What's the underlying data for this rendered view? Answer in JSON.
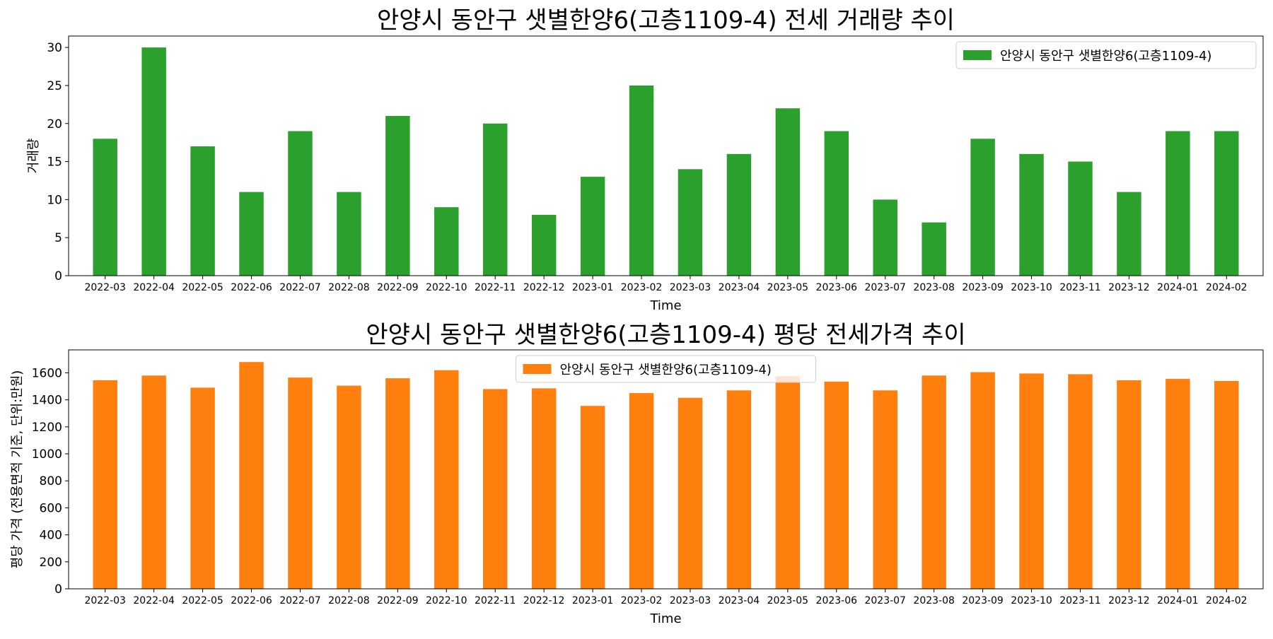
{
  "chart_data": [
    {
      "type": "bar",
      "title": "안양시 동안구 샛별한양6(고층1109-4) 전세 거래량 추이",
      "xlabel": "Time",
      "ylabel": "거래량",
      "ylim": [
        0,
        31.5
      ],
      "yticks": [
        0,
        5,
        10,
        15,
        20,
        25,
        30
      ],
      "color": "#2ca02c",
      "legend_position": "top-right",
      "categories": [
        "2022-03",
        "2022-04",
        "2022-05",
        "2022-06",
        "2022-07",
        "2022-08",
        "2022-09",
        "2022-10",
        "2022-11",
        "2022-12",
        "2023-01",
        "2023-02",
        "2023-03",
        "2023-04",
        "2023-05",
        "2023-06",
        "2023-07",
        "2023-08",
        "2023-09",
        "2023-10",
        "2023-11",
        "2023-12",
        "2024-01",
        "2024-02"
      ],
      "series": [
        {
          "name": "안양시 동안구 샛별한양6(고층1109-4)",
          "values": [
            18,
            30,
            17,
            11,
            19,
            11,
            21,
            9,
            20,
            8,
            13,
            25,
            14,
            16,
            22,
            19,
            10,
            7,
            18,
            16,
            15,
            11,
            19,
            19
          ]
        }
      ]
    },
    {
      "type": "bar",
      "title": "안양시 동안구 샛별한양6(고층1109-4) 평당 전세가격 추이",
      "xlabel": "Time",
      "ylabel": "평당 가격 (전용면적 기준, 단위:만원)",
      "ylim": [
        0,
        1770
      ],
      "yticks": [
        0,
        200,
        400,
        600,
        800,
        1000,
        1200,
        1400,
        1600
      ],
      "color": "#ff7f0e",
      "legend_position": "top-center",
      "categories": [
        "2022-03",
        "2022-04",
        "2022-05",
        "2022-06",
        "2022-07",
        "2022-08",
        "2022-09",
        "2022-10",
        "2022-11",
        "2022-12",
        "2023-01",
        "2023-02",
        "2023-03",
        "2023-04",
        "2023-05",
        "2023-06",
        "2023-07",
        "2023-08",
        "2023-09",
        "2023-10",
        "2023-11",
        "2023-12",
        "2024-01",
        "2024-02"
      ],
      "series": [
        {
          "name": "안양시 동안구 샛별한양6(고층1109-4)",
          "values": [
            1545,
            1580,
            1490,
            1680,
            1565,
            1505,
            1560,
            1620,
            1480,
            1485,
            1355,
            1450,
            1415,
            1470,
            1575,
            1535,
            1470,
            1580,
            1605,
            1595,
            1590,
            1545,
            1555,
            1540
          ]
        }
      ]
    }
  ]
}
